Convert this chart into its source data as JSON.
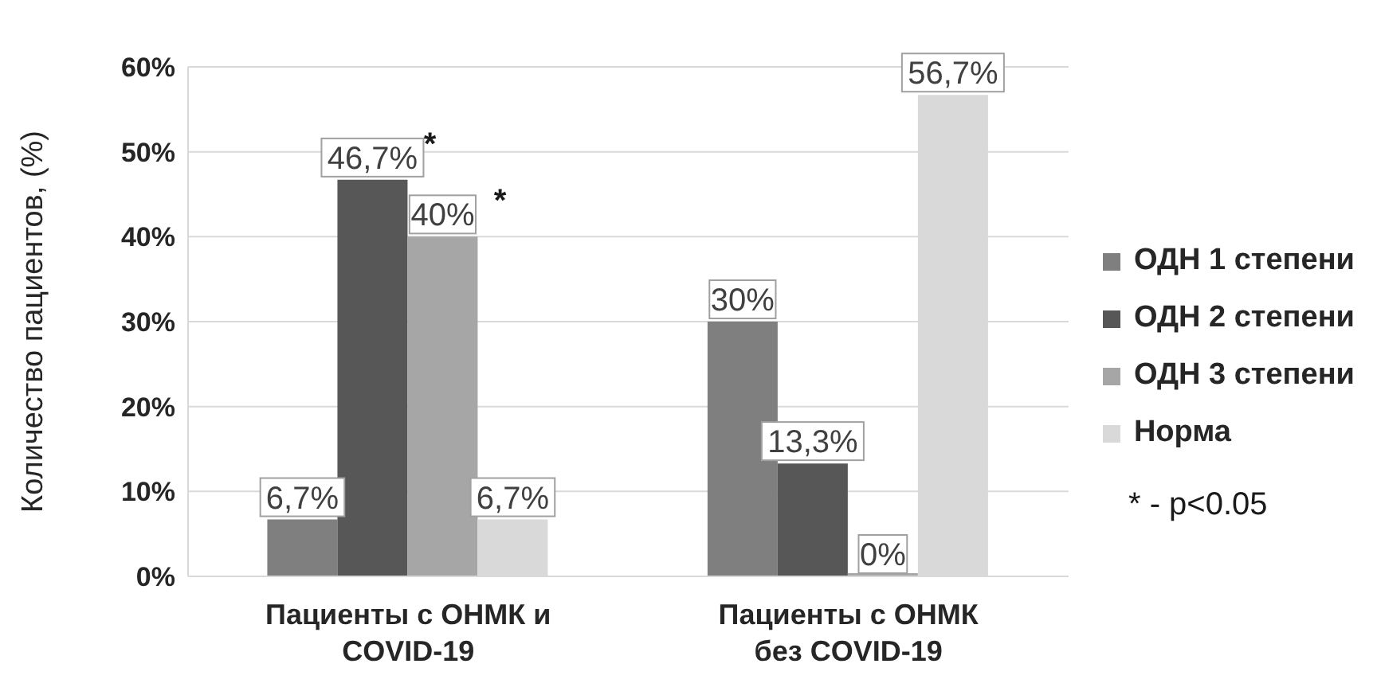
{
  "chart_data": {
    "type": "bar",
    "ylabel": "Количество пациентов, (%)",
    "categories": [
      "Пациенты с ОНМК и COVID-19",
      "Пациенты с ОНМК без COVID-19"
    ],
    "series": [
      {
        "name": "ОДН 1 степени",
        "color": "#7f7f7f",
        "values": [
          6.7,
          30
        ],
        "value_labels": [
          "6,7%",
          "30%"
        ]
      },
      {
        "name": "ОДН 2 степени",
        "color": "#575757",
        "values": [
          46.7,
          13.3
        ],
        "value_labels": [
          "46,7%",
          "13,3%"
        ]
      },
      {
        "name": "ОДН 3 степени",
        "color": "#a6a6a6",
        "values": [
          40,
          0
        ],
        "value_labels": [
          "40%",
          "0%"
        ]
      },
      {
        "name": "Норма",
        "color": "#d9d9d9",
        "values": [
          6.7,
          56.7
        ],
        "value_labels": [
          "6,7%",
          "56,7%"
        ]
      }
    ],
    "ylim": [
      0,
      60
    ],
    "yticks": [
      {
        "value": 0,
        "label": "0%"
      },
      {
        "value": 10,
        "label": "10%"
      },
      {
        "value": 20,
        "label": "20%"
      },
      {
        "value": 30,
        "label": "30%"
      },
      {
        "value": 40,
        "label": "40%"
      },
      {
        "value": 50,
        "label": "50%"
      },
      {
        "value": 60,
        "label": "60%"
      }
    ],
    "grid": "y",
    "legend": "right",
    "annotations": [
      {
        "text": "*",
        "x": "Пациенты с ОНМК и COVID-19",
        "y": 46.7
      },
      {
        "text": "*",
        "x": "Пациенты с ОНМК и COVID-19",
        "y": 40
      },
      "* - p<0.05"
    ]
  }
}
